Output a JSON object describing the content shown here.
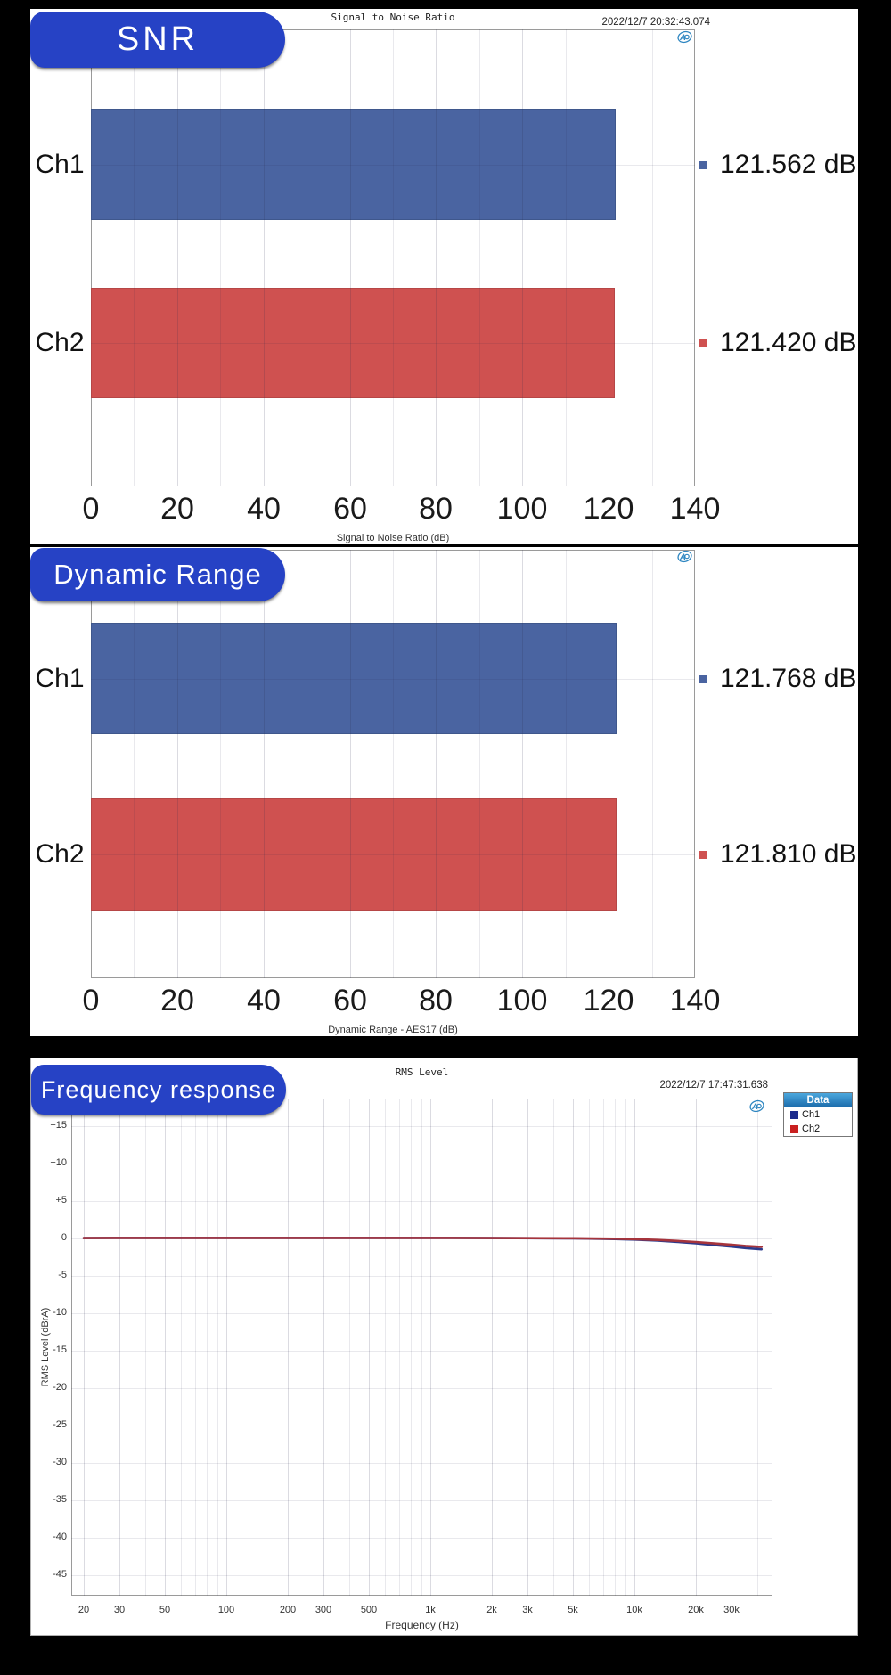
{
  "colors": {
    "background": "#000000",
    "banner": "#2642c5",
    "panel": "#ffffff",
    "ap_logo": "#2e86c1",
    "ch1_bar": "#4a64a1",
    "ch2_bar": "#cf5150",
    "ch1_trace": "#2c3a8c",
    "ch2_trace": "#a6343c"
  },
  "panels": {
    "snr": {
      "banner": "SNR",
      "title": "Signal to Noise Ratio",
      "timestamp": "2022/12/7 20:32:43.074",
      "xlabel": "Signal to Noise Ratio (dB)"
    },
    "dynamic_range": {
      "banner": "Dynamic Range",
      "xlabel": "Dynamic Range - AES17 (dB)"
    },
    "frequency_response": {
      "banner": "Frequency response",
      "title": "RMS Level",
      "timestamp": "2022/12/7 17:47:31.638",
      "xlabel": "Frequency (Hz)",
      "ylabel": "RMS Level (dBrA)",
      "legend": {
        "header": "Data",
        "entries": [
          {
            "label": "Ch1",
            "color": "#1b2a8c"
          },
          {
            "label": "Ch2",
            "color": "#c92020"
          }
        ]
      }
    }
  },
  "chart_data": [
    {
      "id": "snr",
      "type": "bar",
      "orientation": "horizontal",
      "title": "Signal to Noise Ratio",
      "categories": [
        "Ch1",
        "Ch2"
      ],
      "values": [
        121.562,
        121.42
      ],
      "value_labels": [
        "121.562 dB",
        "121.420 dB"
      ],
      "bar_colors": [
        "#4a64a1",
        "#cf5150"
      ],
      "bar_borders": [
        "#3f578c",
        "#b64646"
      ],
      "xlim": [
        0,
        140
      ],
      "x_tick_step": 20,
      "x_minor_step": 10,
      "x_tick_labels": [
        "0",
        "20",
        "40",
        "60",
        "80",
        "100",
        "120",
        "140"
      ],
      "xlabel": "Signal to Noise Ratio (dB)",
      "timestamp": "2022/12/7 20:32:43.074"
    },
    {
      "id": "dynamic_range",
      "type": "bar",
      "orientation": "horizontal",
      "title": "Dynamic Range",
      "categories": [
        "Ch1",
        "Ch2"
      ],
      "values": [
        121.768,
        121.81
      ],
      "value_labels": [
        "121.768 dB",
        "121.810 dB"
      ],
      "bar_colors": [
        "#4a64a1",
        "#cf5150"
      ],
      "bar_borders": [
        "#3f578c",
        "#b64646"
      ],
      "xlim": [
        0,
        140
      ],
      "x_tick_step": 20,
      "x_minor_step": 10,
      "x_tick_labels": [
        "0",
        "20",
        "40",
        "60",
        "80",
        "100",
        "120",
        "140"
      ],
      "xlabel": "Dynamic Range - AES17 (dB)"
    },
    {
      "id": "frequency_response",
      "type": "line",
      "title": "RMS Level",
      "xlabel": "Frequency (Hz)",
      "ylabel": "RMS Level (dBrA)",
      "x_scale": "log",
      "xlim": [
        17.5,
        47500
      ],
      "ylim": [
        -47.5,
        17.5
      ],
      "grid": true,
      "legend_position": "top-right",
      "x_ticks": [
        {
          "f": 20,
          "label": "20"
        },
        {
          "f": 30,
          "label": "30"
        },
        {
          "f": 50,
          "label": "50"
        },
        {
          "f": 100,
          "label": "100"
        },
        {
          "f": 200,
          "label": "200"
        },
        {
          "f": 300,
          "label": "300"
        },
        {
          "f": 500,
          "label": "500"
        },
        {
          "f": 1000,
          "label": "1k"
        },
        {
          "f": 2000,
          "label": "2k"
        },
        {
          "f": 3000,
          "label": "3k"
        },
        {
          "f": 5000,
          "label": "5k"
        },
        {
          "f": 10000,
          "label": "10k"
        },
        {
          "f": 20000,
          "label": "20k"
        },
        {
          "f": 30000,
          "label": "30k"
        }
      ],
      "y_ticks": [
        {
          "v": 15,
          "label": "+15"
        },
        {
          "v": 10,
          "label": "+10"
        },
        {
          "v": 5,
          "label": "+5"
        },
        {
          "v": 0,
          "label": "0"
        },
        {
          "v": -5,
          "label": "-5"
        },
        {
          "v": -10,
          "label": "-10"
        },
        {
          "v": -15,
          "label": "-15"
        },
        {
          "v": -20,
          "label": "-20"
        },
        {
          "v": -25,
          "label": "-25"
        },
        {
          "v": -30,
          "label": "-30"
        },
        {
          "v": -35,
          "label": "-35"
        },
        {
          "v": -40,
          "label": "-40"
        },
        {
          "v": -45,
          "label": "-45"
        }
      ],
      "series": [
        {
          "name": "Ch1",
          "color": "#2c3a8c",
          "points": [
            [
              20,
              0.05
            ],
            [
              30,
              0.07
            ],
            [
              50,
              0.07
            ],
            [
              100,
              0.07
            ],
            [
              200,
              0.07
            ],
            [
              500,
              0.07
            ],
            [
              1000,
              0.07
            ],
            [
              2000,
              0.05
            ],
            [
              5000,
              0
            ],
            [
              8000,
              -0.08
            ],
            [
              10000,
              -0.15
            ],
            [
              13000,
              -0.28
            ],
            [
              16000,
              -0.45
            ],
            [
              20000,
              -0.65
            ],
            [
              25000,
              -0.9
            ],
            [
              30000,
              -1.1
            ],
            [
              35000,
              -1.28
            ],
            [
              40000,
              -1.4
            ],
            [
              42000,
              -1.45
            ]
          ]
        },
        {
          "name": "Ch2",
          "color": "#a6343c",
          "points": [
            [
              20,
              0.05
            ],
            [
              30,
              0.07
            ],
            [
              50,
              0.07
            ],
            [
              100,
              0.07
            ],
            [
              200,
              0.07
            ],
            [
              500,
              0.07
            ],
            [
              1000,
              0.07
            ],
            [
              2000,
              0.05
            ],
            [
              5000,
              0.02
            ],
            [
              8000,
              -0.04
            ],
            [
              10000,
              -0.1
            ],
            [
              13000,
              -0.2
            ],
            [
              16000,
              -0.32
            ],
            [
              20000,
              -0.48
            ],
            [
              25000,
              -0.68
            ],
            [
              30000,
              -0.85
            ],
            [
              35000,
              -1.0
            ],
            [
              40000,
              -1.1
            ],
            [
              42000,
              -1.13
            ]
          ]
        }
      ],
      "timestamp": "2022/12/7 17:47:31.638"
    }
  ]
}
